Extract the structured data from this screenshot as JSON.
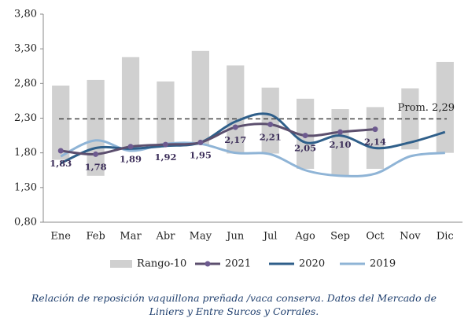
{
  "chart_data": {
    "type": "line",
    "categories": [
      "Ene",
      "Feb",
      "Mar",
      "Abr",
      "May",
      "Jun",
      "Jul",
      "Ago",
      "Sep",
      "Oct",
      "Nov",
      "Dic"
    ],
    "range": {
      "name": "Rango-10",
      "color": "#d0d0d0",
      "low": [
        1.7,
        1.47,
        1.85,
        1.91,
        1.91,
        1.79,
        1.79,
        1.57,
        1.47,
        1.57,
        1.85,
        1.8
      ],
      "high": [
        2.77,
        2.85,
        3.18,
        2.83,
        3.27,
        3.06,
        2.74,
        2.58,
        2.43,
        2.46,
        2.73,
        3.11
      ]
    },
    "series": [
      {
        "name": "2021",
        "color": "#5c4f6e",
        "marker": true,
        "values": [
          1.83,
          1.78,
          1.89,
          1.92,
          1.95,
          2.17,
          2.21,
          2.05,
          2.1,
          2.14,
          null,
          null
        ],
        "value_labels": [
          "1,83",
          "1,78",
          "1,89",
          "1,92",
          "1,95",
          "2,17",
          "2,21",
          "2,05",
          "2,10",
          "2,14",
          null,
          null
        ]
      },
      {
        "name": "2020",
        "color": "#2f5f8a",
        "values": [
          1.65,
          1.87,
          1.86,
          1.9,
          1.95,
          2.25,
          2.35,
          1.95,
          2.05,
          1.87,
          1.95,
          2.1
        ]
      },
      {
        "name": "2019",
        "color": "#8fb4d6",
        "values": [
          1.75,
          1.98,
          1.83,
          1.93,
          1.93,
          1.8,
          1.78,
          1.55,
          1.47,
          1.5,
          1.75,
          1.8
        ]
      }
    ],
    "reference": {
      "value": 2.29,
      "label": "Prom. 2,29"
    },
    "ylim": [
      0.8,
      3.8
    ],
    "yticks": [
      {
        "value": 0.8,
        "label": "0,80"
      },
      {
        "value": 1.3,
        "label": "1,30"
      },
      {
        "value": 1.8,
        "label": "1,80"
      },
      {
        "value": 2.3,
        "label": "2,30"
      },
      {
        "value": 2.8,
        "label": "2,80"
      },
      {
        "value": 3.3,
        "label": "3,30"
      },
      {
        "value": 3.8,
        "label": "3,80"
      }
    ],
    "caption": [
      "Relación de reposición vaquillona preñada /vaca conserva. Datos del Mercado de",
      "Liniers y Entre Surcos y Corrales."
    ]
  }
}
